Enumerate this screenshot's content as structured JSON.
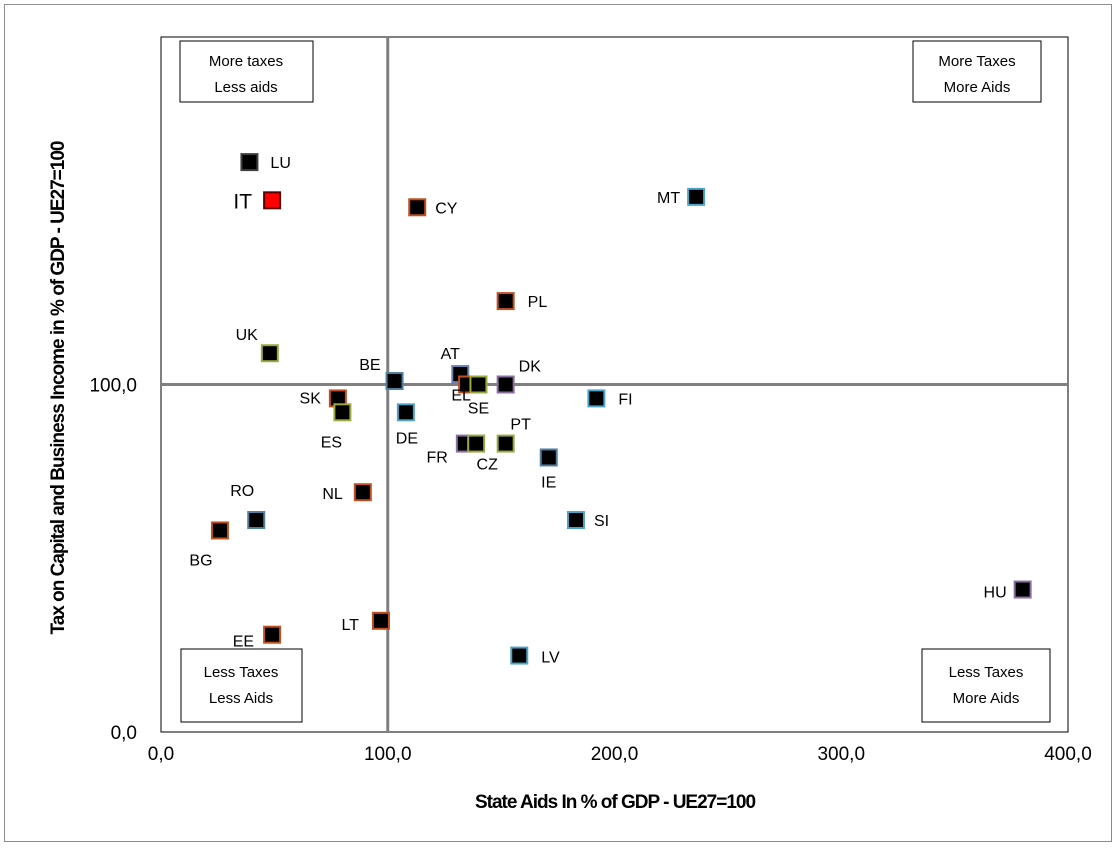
{
  "chart_data": {
    "type": "scatter",
    "xlabel": "State Aids In % of GDP - UE27=100",
    "ylabel": "Tax on Capital and Business Income in % of GDP - UE27=100",
    "xlim": [
      0,
      400
    ],
    "ylim": [
      0,
      200
    ],
    "xticks": [
      "0,0",
      "100,0",
      "200,0",
      "300,0",
      "400,0"
    ],
    "yticks": [
      "0,0",
      "100,0"
    ],
    "reference_lines": {
      "x": 100,
      "y": 100
    },
    "quadrant_labels": {
      "top_left": [
        "More taxes",
        "Less aids"
      ],
      "top_right": [
        "More Taxes",
        "More Aids"
      ],
      "bottom_left": [
        "Less Taxes",
        "Less Aids"
      ],
      "bottom_right": [
        "Less Taxes",
        "More Aids"
      ]
    },
    "points": [
      {
        "label": "LU",
        "x": 39,
        "y": 164,
        "color": "#000000",
        "edge": "#404040"
      },
      {
        "label": "IT",
        "x": 49,
        "y": 153,
        "color": "#ff0000",
        "edge": "#5a0000",
        "highlight": true
      },
      {
        "label": "CY",
        "x": 113,
        "y": 151,
        "color": "#000000",
        "edge": "#c05020"
      },
      {
        "label": "MT",
        "x": 236,
        "y": 154,
        "color": "#000000",
        "edge": "#4fa3c8"
      },
      {
        "label": "PL",
        "x": 152,
        "y": 124,
        "color": "#000000",
        "edge": "#c05020"
      },
      {
        "label": "UK",
        "x": 48,
        "y": 109,
        "color": "#000000",
        "edge": "#9aaa40"
      },
      {
        "label": "BE",
        "x": 103,
        "y": 101,
        "color": "#000000",
        "edge": "#4f7fa0"
      },
      {
        "label": "AT",
        "x": 132,
        "y": 103,
        "color": "#000000",
        "edge": "#6f7fb0"
      },
      {
        "label": "EL",
        "x": 135,
        "y": 100,
        "color": "#000000",
        "edge": "#c05020"
      },
      {
        "label": "SE",
        "x": 140,
        "y": 100,
        "color": "#000000",
        "edge": "#9aaa40"
      },
      {
        "label": "DK",
        "x": 152,
        "y": 100,
        "color": "#000000",
        "edge": "#8a6fa0"
      },
      {
        "label": "FI",
        "x": 192,
        "y": 96,
        "color": "#000000",
        "edge": "#4fa3c8"
      },
      {
        "label": "SK",
        "x": 78,
        "y": 96,
        "color": "#000000",
        "edge": "#c05020"
      },
      {
        "label": "ES",
        "x": 80,
        "y": 92,
        "color": "#000000",
        "edge": "#9aaa40"
      },
      {
        "label": "DE",
        "x": 108,
        "y": 92,
        "color": "#000000",
        "edge": "#4fa3c8"
      },
      {
        "label": "FR",
        "x": 134,
        "y": 83,
        "color": "#000000",
        "edge": "#8a6fa0"
      },
      {
        "label": "CZ",
        "x": 139,
        "y": 83,
        "color": "#000000",
        "edge": "#9aaa40"
      },
      {
        "label": "PT",
        "x": 152,
        "y": 83,
        "color": "#000000",
        "edge": "#9aaa40"
      },
      {
        "label": "IE",
        "x": 171,
        "y": 79,
        "color": "#000000",
        "edge": "#4f7fa0"
      },
      {
        "label": "NL",
        "x": 89,
        "y": 69,
        "color": "#000000",
        "edge": "#c05020"
      },
      {
        "label": "RO",
        "x": 42,
        "y": 61,
        "color": "#000000",
        "edge": "#4f7fa0"
      },
      {
        "label": "BG",
        "x": 26,
        "y": 58,
        "color": "#000000",
        "edge": "#c05020"
      },
      {
        "label": "SI",
        "x": 183,
        "y": 61,
        "color": "#000000",
        "edge": "#4fa3c8"
      },
      {
        "label": "HU",
        "x": 380,
        "y": 41,
        "color": "#000000",
        "edge": "#8a6fa0"
      },
      {
        "label": "LT",
        "x": 97,
        "y": 32,
        "color": "#000000",
        "edge": "#c05020"
      },
      {
        "label": "EE",
        "x": 49,
        "y": 28,
        "color": "#000000",
        "edge": "#c05020"
      },
      {
        "label": "LV",
        "x": 158,
        "y": 22,
        "color": "#000000",
        "edge": "#4fa3c8"
      }
    ]
  }
}
